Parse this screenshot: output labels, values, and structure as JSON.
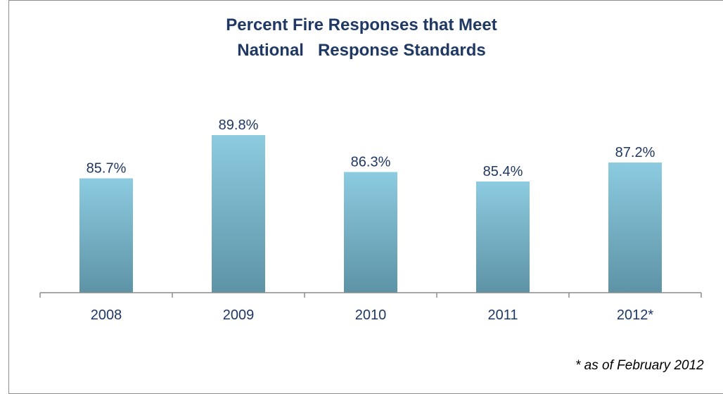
{
  "colors": {
    "bar_top": "#8ccbe0",
    "bar_bottom": "#5e93a6",
    "label": "#1f3864",
    "axis": "#8c8c8c"
  },
  "chart_data": {
    "type": "bar",
    "title_lines": [
      "Percent Fire Responses that Meet",
      "National   Response Standards"
    ],
    "categories": [
      "2008",
      "2009",
      "2010",
      "2011",
      "2012*"
    ],
    "values": [
      85.7,
      89.8,
      86.3,
      85.4,
      87.2
    ],
    "data_labels": [
      "85.7%",
      "89.8%",
      "86.3%",
      "85.4%",
      "87.2%"
    ],
    "xlabel": "",
    "ylabel": "",
    "y_axis_visible": false,
    "gridlines": false,
    "footnote": "* as of February 2012"
  }
}
